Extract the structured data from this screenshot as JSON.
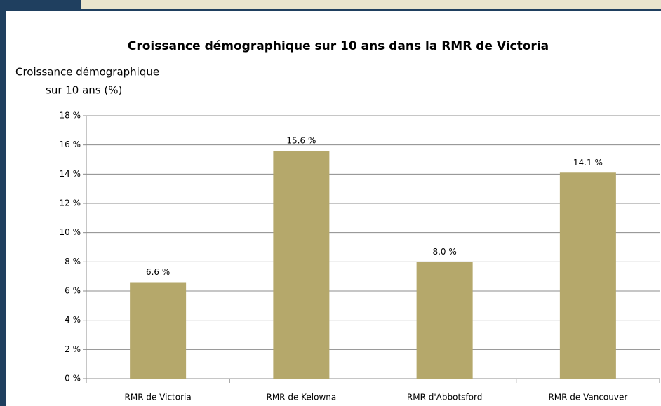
{
  "chart_data": {
    "type": "bar",
    "title": "Croissance démographique sur 10 ans dans la RMR de Victoria",
    "y_label": [
      "Croissance démographique",
      "sur 10 ans (%)"
    ],
    "categories": [
      "RMR de Victoria",
      "RMR de Kelowna",
      "RMR d'Abbotsford",
      "RMR de Vancouver"
    ],
    "values": [
      6.6,
      15.6,
      8.0,
      14.1
    ],
    "value_labels": [
      "6.6 %",
      "15.6 %",
      "8.0 %",
      "14.1 %"
    ],
    "color": "#b5a86b",
    "ylim": [
      0,
      18
    ],
    "yticks": [
      {
        "value": 0,
        "label": "0 %"
      },
      {
        "value": 2,
        "label": "2 %"
      },
      {
        "value": 4,
        "label": "4 %"
      },
      {
        "value": 6,
        "label": "6 %"
      },
      {
        "value": 8,
        "label": "8 %"
      },
      {
        "value": 10,
        "label": "10 %"
      },
      {
        "value": 12,
        "label": "12 %"
      },
      {
        "value": 14,
        "label": "14 %"
      },
      {
        "value": 16,
        "label": "16 %"
      },
      {
        "value": 18,
        "label": "18 %"
      }
    ],
    "grid": true
  }
}
